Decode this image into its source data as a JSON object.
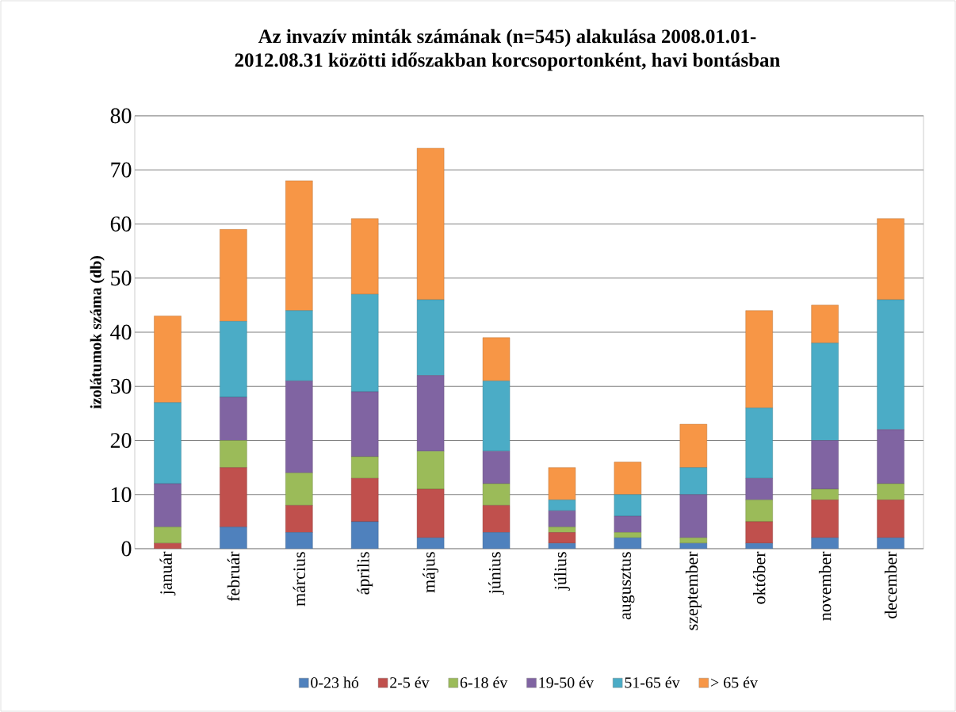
{
  "chart_data": {
    "type": "bar",
    "title": "Az invazív minták számának (n=545) alakulása 2008.01.01-\n2012.08.31 közötti időszakban korcsoportonként, havi bontásban",
    "ylabel": "izolátumok száma (db)",
    "categories": [
      "január",
      "február",
      "március",
      "április",
      "május",
      "június",
      "július",
      "augusztus",
      "szeptember",
      "október",
      "november",
      "december"
    ],
    "stacked": true,
    "ylim": [
      0,
      80
    ],
    "yticks": [
      0,
      10,
      20,
      30,
      40,
      50,
      60,
      70,
      80
    ],
    "grid": "y",
    "legend": "bottom",
    "series": [
      {
        "name": "0-23 hó",
        "color": "#4f81bd",
        "values": [
          0,
          4,
          3,
          5,
          2,
          3,
          1,
          2,
          1,
          1,
          2,
          2
        ]
      },
      {
        "name": "2-5 év",
        "color": "#c0504d",
        "values": [
          1,
          11,
          5,
          8,
          9,
          5,
          2,
          0,
          0,
          4,
          7,
          7
        ]
      },
      {
        "name": "6-18 év",
        "color": "#9bbb59",
        "values": [
          3,
          5,
          6,
          4,
          7,
          4,
          1,
          1,
          1,
          4,
          2,
          3
        ]
      },
      {
        "name": "19-50 év",
        "color": "#8064a2",
        "values": [
          8,
          8,
          17,
          12,
          14,
          6,
          3,
          3,
          8,
          4,
          9,
          10
        ]
      },
      {
        "name": "51-65 év",
        "color": "#4bacc6",
        "values": [
          15,
          14,
          13,
          18,
          14,
          13,
          2,
          4,
          5,
          13,
          18,
          24
        ]
      },
      {
        "name": "> 65 év",
        "color": "#f79646",
        "values": [
          16,
          17,
          24,
          14,
          28,
          8,
          6,
          6,
          8,
          18,
          7,
          15
        ]
      }
    ]
  }
}
